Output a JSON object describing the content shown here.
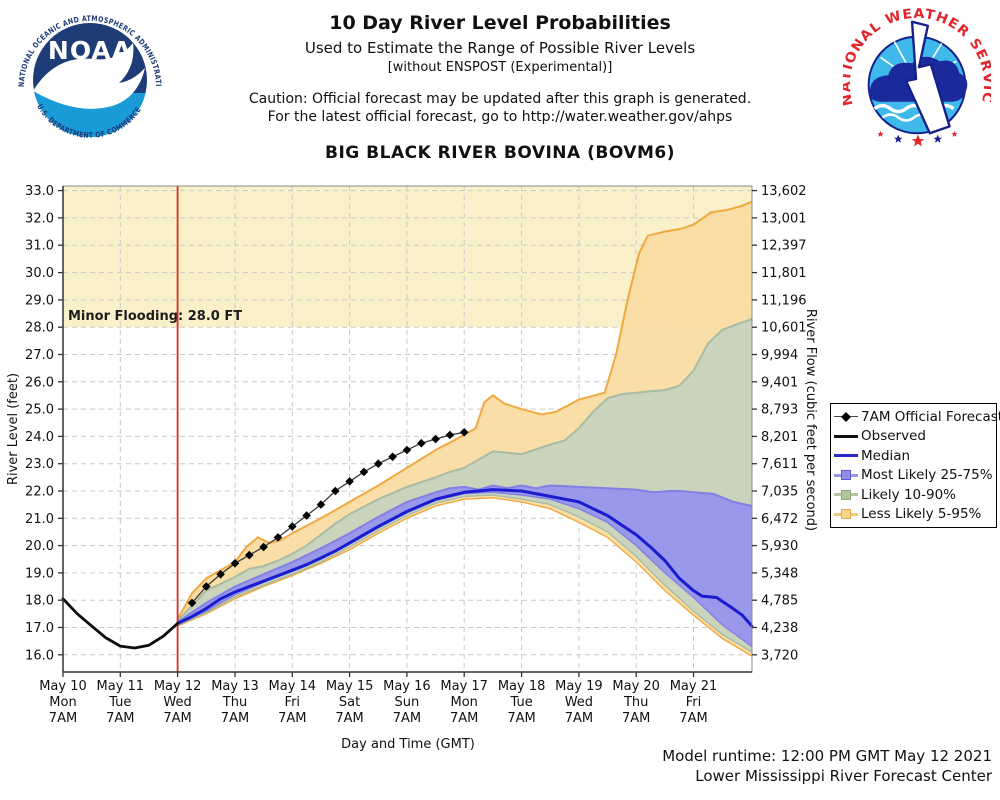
{
  "header": {
    "title": "10 Day River Level Probabilities",
    "subtitle": "Used to Estimate the Range of Possible River Levels",
    "subtitle2": "[without ENSPOST (Experimental)]",
    "caution1": "Caution: Official forecast may be updated after this graph is generated.",
    "caution2": "For the latest official forecast, go to http://water.weather.gov/ahps",
    "station": "BIG BLACK RIVER BOVINA (BOVM6)"
  },
  "logos": {
    "noaa": {
      "acronym": "NOAA",
      "arc_top": "NATIONAL OCEANIC AND ATMOSPHERIC ADMINISTRATION",
      "arc_bottom": "U.S. DEPARTMENT OF COMMERCE"
    },
    "nws": {
      "arc": "NATIONAL WEATHER SERVICE"
    }
  },
  "footer": {
    "model_runtime": "Model runtime: 12:00 PM GMT May 12 2021",
    "center": "Lower Mississippi River Forecast Center"
  },
  "legend": {
    "items": [
      {
        "label": "7AM Official Forecast",
        "swatch": "diamond-line",
        "line_color": "#444444",
        "marker_color": "#000000"
      },
      {
        "label": "Observed",
        "swatch": "line",
        "line_color": "#111111"
      },
      {
        "label": "Median",
        "swatch": "line",
        "line_color": "#2A2ACC"
      },
      {
        "label": "Most Likely 25-75%",
        "swatch": "band",
        "line_color": "#9898E8",
        "fill": "#8E8EE8",
        "border": "#5C5CD0"
      },
      {
        "label": "Likely 10-90%",
        "swatch": "band",
        "line_color": "#B5C5A5",
        "fill": "#B2C69C",
        "border": "#8FA882"
      },
      {
        "label": "Less Likely 5-95%",
        "swatch": "band",
        "line_color": "#F2C978",
        "fill": "#F6D488",
        "border": "#E3A94E"
      }
    ]
  },
  "chart_data": {
    "type": "line",
    "title": "BIG BLACK RIVER BOVINA (BOVM6)",
    "xlabel": "Day and Time (GMT)",
    "ylabel_left": "River Level (feet)",
    "ylabel_right": "River Flow (cubic feet per second)",
    "grid": true,
    "legend_position": "right",
    "y_left": {
      "tick_min": 16,
      "tick_max": 33,
      "tick_step": 1,
      "axis_range": [
        15.37,
        33.17
      ]
    },
    "y_right_labels": [
      "13,602",
      "13,001",
      "12,397",
      "11,801",
      "11,196",
      "10,601",
      "9,994",
      "9,401",
      "8,793",
      "8,201",
      "7,611",
      "7,035",
      "6,472",
      "5,930",
      "5,348",
      "4,785",
      "4,238",
      "3,720"
    ],
    "x_axis": {
      "range_days": [
        0,
        12.02
      ],
      "days": [
        {
          "date": "May 10",
          "dow": "Mon",
          "time": "7AM"
        },
        {
          "date": "May 11",
          "dow": "Tue",
          "time": "7AM"
        },
        {
          "date": "May 12",
          "dow": "Wed",
          "time": "7AM"
        },
        {
          "date": "May 13",
          "dow": "Thu",
          "time": "7AM"
        },
        {
          "date": "May 14",
          "dow": "Fri",
          "time": "7AM"
        },
        {
          "date": "May 15",
          "dow": "Sat",
          "time": "7AM"
        },
        {
          "date": "May 16",
          "dow": "Sun",
          "time": "7AM"
        },
        {
          "date": "May 17",
          "dow": "Mon",
          "time": "7AM"
        },
        {
          "date": "May 18",
          "dow": "Tue",
          "time": "7AM"
        },
        {
          "date": "May 19",
          "dow": "Wed",
          "time": "7AM"
        },
        {
          "date": "May 20",
          "dow": "Thu",
          "time": "7AM"
        },
        {
          "date": "May 21",
          "dow": "Fri",
          "time": "7AM"
        }
      ]
    },
    "flood": {
      "label": "Minor Flooding: 28.0 FT",
      "stage": 28.0,
      "color": "#FAF1CA",
      "label_color": "#1d1d1d"
    },
    "now_line": {
      "day": 2,
      "color": "#E02A20"
    },
    "series": [
      {
        "name": "Less Likely 5-95%",
        "role": "band",
        "fill": "#FADCA2",
        "edge": "#EFA93F",
        "upper": [
          [
            2,
            17.3
          ],
          [
            2.25,
            18.25
          ],
          [
            2.5,
            18.8
          ],
          [
            2.75,
            19.1
          ],
          [
            3,
            19.4
          ],
          [
            3.2,
            19.95
          ],
          [
            3.4,
            20.3
          ],
          [
            3.6,
            20.1
          ],
          [
            3.8,
            20.2
          ],
          [
            4,
            20.45
          ],
          [
            4.5,
            21.0
          ],
          [
            5,
            21.6
          ],
          [
            5.5,
            22.2
          ],
          [
            6,
            22.85
          ],
          [
            6.5,
            23.5
          ],
          [
            7,
            24.05
          ],
          [
            7.2,
            24.3
          ],
          [
            7.35,
            25.25
          ],
          [
            7.5,
            25.5
          ],
          [
            7.7,
            25.2
          ],
          [
            8,
            25.0
          ],
          [
            8.35,
            24.8
          ],
          [
            8.6,
            24.9
          ],
          [
            9,
            25.35
          ],
          [
            9.45,
            25.6
          ],
          [
            9.65,
            27.0
          ],
          [
            9.85,
            29.0
          ],
          [
            10.05,
            30.7
          ],
          [
            10.2,
            31.35
          ],
          [
            10.5,
            31.5
          ],
          [
            10.77,
            31.6
          ],
          [
            11,
            31.75
          ],
          [
            11.3,
            32.2
          ],
          [
            11.6,
            32.3
          ],
          [
            11.85,
            32.45
          ],
          [
            12.02,
            32.6
          ]
        ],
        "lower": [
          [
            2,
            17.05
          ],
          [
            2.5,
            17.5
          ],
          [
            3,
            18.05
          ],
          [
            3.5,
            18.5
          ],
          [
            4,
            18.9
          ],
          [
            4.5,
            19.35
          ],
          [
            5,
            19.85
          ],
          [
            5.5,
            20.45
          ],
          [
            6,
            21.0
          ],
          [
            6.5,
            21.45
          ],
          [
            7,
            21.7
          ],
          [
            7.5,
            21.75
          ],
          [
            8,
            21.6
          ],
          [
            8.5,
            21.35
          ],
          [
            9,
            20.85
          ],
          [
            9.5,
            20.3
          ],
          [
            10,
            19.4
          ],
          [
            10.5,
            18.35
          ],
          [
            11,
            17.45
          ],
          [
            11.5,
            16.6
          ],
          [
            12.02,
            15.95
          ]
        ]
      },
      {
        "name": "Likely 10-90%",
        "role": "band",
        "fill": "#C7D3BE",
        "edge": "#A9BBA2",
        "upper": [
          [
            2,
            17.25
          ],
          [
            2.5,
            18.35
          ],
          [
            3,
            18.85
          ],
          [
            3.25,
            19.15
          ],
          [
            3.5,
            19.25
          ],
          [
            3.75,
            19.45
          ],
          [
            4,
            19.7
          ],
          [
            4.25,
            20.0
          ],
          [
            4.5,
            20.4
          ],
          [
            4.75,
            20.8
          ],
          [
            5,
            21.15
          ],
          [
            5.5,
            21.7
          ],
          [
            6,
            22.15
          ],
          [
            6.5,
            22.5
          ],
          [
            6.75,
            22.7
          ],
          [
            7,
            22.85
          ],
          [
            7.25,
            23.15
          ],
          [
            7.5,
            23.45
          ],
          [
            7.75,
            23.4
          ],
          [
            8,
            23.35
          ],
          [
            8.5,
            23.7
          ],
          [
            8.75,
            23.85
          ],
          [
            9,
            24.3
          ],
          [
            9.25,
            24.9
          ],
          [
            9.5,
            25.4
          ],
          [
            9.75,
            25.55
          ],
          [
            10,
            25.6
          ],
          [
            10.25,
            25.65
          ],
          [
            10.5,
            25.7
          ],
          [
            10.75,
            25.85
          ],
          [
            11,
            26.4
          ],
          [
            11.25,
            27.4
          ],
          [
            11.5,
            27.9
          ],
          [
            11.75,
            28.1
          ],
          [
            12.02,
            28.3
          ]
        ],
        "lower": [
          [
            2,
            17.08
          ],
          [
            2.5,
            17.55
          ],
          [
            3,
            18.12
          ],
          [
            3.5,
            18.55
          ],
          [
            4,
            18.95
          ],
          [
            4.5,
            19.4
          ],
          [
            5,
            19.95
          ],
          [
            5.5,
            20.55
          ],
          [
            6,
            21.1
          ],
          [
            6.5,
            21.55
          ],
          [
            7,
            21.8
          ],
          [
            7.5,
            21.85
          ],
          [
            8,
            21.7
          ],
          [
            8.5,
            21.5
          ],
          [
            9,
            21.05
          ],
          [
            9.5,
            20.5
          ],
          [
            10,
            19.6
          ],
          [
            10.5,
            18.55
          ],
          [
            11,
            17.6
          ],
          [
            11.5,
            16.75
          ],
          [
            12.02,
            16.1
          ]
        ]
      },
      {
        "name": "Most Likely 25-75%",
        "role": "band",
        "fill": "#9795EC",
        "edge": "#8280E2",
        "upper": [
          [
            2,
            17.2
          ],
          [
            2.5,
            17.9
          ],
          [
            3,
            18.5
          ],
          [
            3.5,
            18.95
          ],
          [
            4,
            19.4
          ],
          [
            4.5,
            19.9
          ],
          [
            5,
            20.45
          ],
          [
            5.5,
            21.05
          ],
          [
            6,
            21.6
          ],
          [
            6.5,
            21.95
          ],
          [
            6.75,
            22.1
          ],
          [
            7,
            22.15
          ],
          [
            7.25,
            22.05
          ],
          [
            7.5,
            22.2
          ],
          [
            7.75,
            22.1
          ],
          [
            8,
            22.2
          ],
          [
            8.25,
            22.1
          ],
          [
            8.5,
            22.2
          ],
          [
            9,
            22.15
          ],
          [
            9.5,
            22.1
          ],
          [
            10,
            22.05
          ],
          [
            10.3,
            21.95
          ],
          [
            10.6,
            22.0
          ],
          [
            10.77,
            22.0
          ],
          [
            11,
            21.95
          ],
          [
            11.34,
            21.9
          ],
          [
            11.7,
            21.6
          ],
          [
            12.02,
            21.45
          ]
        ],
        "lower": [
          [
            2,
            17.1
          ],
          [
            2.5,
            17.6
          ],
          [
            3,
            18.2
          ],
          [
            3.5,
            18.65
          ],
          [
            4,
            19.05
          ],
          [
            4.5,
            19.5
          ],
          [
            5,
            20.05
          ],
          [
            5.5,
            20.65
          ],
          [
            6,
            21.2
          ],
          [
            6.5,
            21.65
          ],
          [
            7,
            21.9
          ],
          [
            7.5,
            21.95
          ],
          [
            8,
            21.85
          ],
          [
            8.5,
            21.7
          ],
          [
            9,
            21.35
          ],
          [
            9.5,
            20.85
          ],
          [
            10,
            20.0
          ],
          [
            10.5,
            19.0
          ],
          [
            11,
            18.1
          ],
          [
            11.5,
            17.1
          ],
          [
            12.02,
            16.3
          ]
        ]
      },
      {
        "name": "Median",
        "role": "line",
        "color": "#1A1CCE",
        "width": 3,
        "points": [
          [
            2,
            17.15
          ],
          [
            2.25,
            17.4
          ],
          [
            2.5,
            17.7
          ],
          [
            2.75,
            18.05
          ],
          [
            3,
            18.3
          ],
          [
            3.25,
            18.5
          ],
          [
            3.5,
            18.7
          ],
          [
            3.75,
            18.9
          ],
          [
            4,
            19.1
          ],
          [
            4.25,
            19.3
          ],
          [
            4.5,
            19.55
          ],
          [
            4.75,
            19.8
          ],
          [
            5,
            20.1
          ],
          [
            5.25,
            20.4
          ],
          [
            5.5,
            20.7
          ],
          [
            6,
            21.25
          ],
          [
            6.5,
            21.7
          ],
          [
            7,
            21.95
          ],
          [
            7.5,
            22.05
          ],
          [
            8,
            22.0
          ],
          [
            8.5,
            21.8
          ],
          [
            9,
            21.6
          ],
          [
            9.5,
            21.1
          ],
          [
            10,
            20.4
          ],
          [
            10.25,
            19.95
          ],
          [
            10.5,
            19.45
          ],
          [
            10.75,
            18.8
          ],
          [
            11,
            18.35
          ],
          [
            11.15,
            18.15
          ],
          [
            11.4,
            18.1
          ],
          [
            11.65,
            17.75
          ],
          [
            11.85,
            17.45
          ],
          [
            12.02,
            17.05
          ]
        ]
      },
      {
        "name": "Observed",
        "role": "line",
        "color": "#0d0d0d",
        "width": 2.8,
        "points": [
          [
            0,
            18.05
          ],
          [
            0.25,
            17.5
          ],
          [
            0.5,
            17.05
          ],
          [
            0.75,
            16.62
          ],
          [
            1.0,
            16.32
          ],
          [
            1.25,
            16.25
          ],
          [
            1.5,
            16.35
          ],
          [
            1.75,
            16.68
          ],
          [
            2,
            17.15
          ]
        ]
      },
      {
        "name": "7AM Official Forecast",
        "role": "line-markers",
        "color": "#3a3a3a",
        "width": 1.3,
        "marker": "diamond",
        "marker_color": "#000000",
        "points": [
          [
            2.25,
            17.9
          ],
          [
            2.5,
            18.5
          ],
          [
            2.75,
            18.95
          ],
          [
            3.0,
            19.35
          ],
          [
            3.25,
            19.65
          ],
          [
            3.5,
            19.95
          ],
          [
            3.75,
            20.3
          ],
          [
            4.0,
            20.7
          ],
          [
            4.25,
            21.1
          ],
          [
            4.5,
            21.5
          ],
          [
            4.75,
            22.0
          ],
          [
            5.0,
            22.35
          ],
          [
            5.25,
            22.7
          ],
          [
            5.5,
            23.0
          ],
          [
            5.75,
            23.25
          ],
          [
            6.0,
            23.5
          ],
          [
            6.25,
            23.75
          ],
          [
            6.5,
            23.9
          ],
          [
            6.75,
            24.05
          ],
          [
            7.0,
            24.15
          ]
        ]
      }
    ]
  }
}
